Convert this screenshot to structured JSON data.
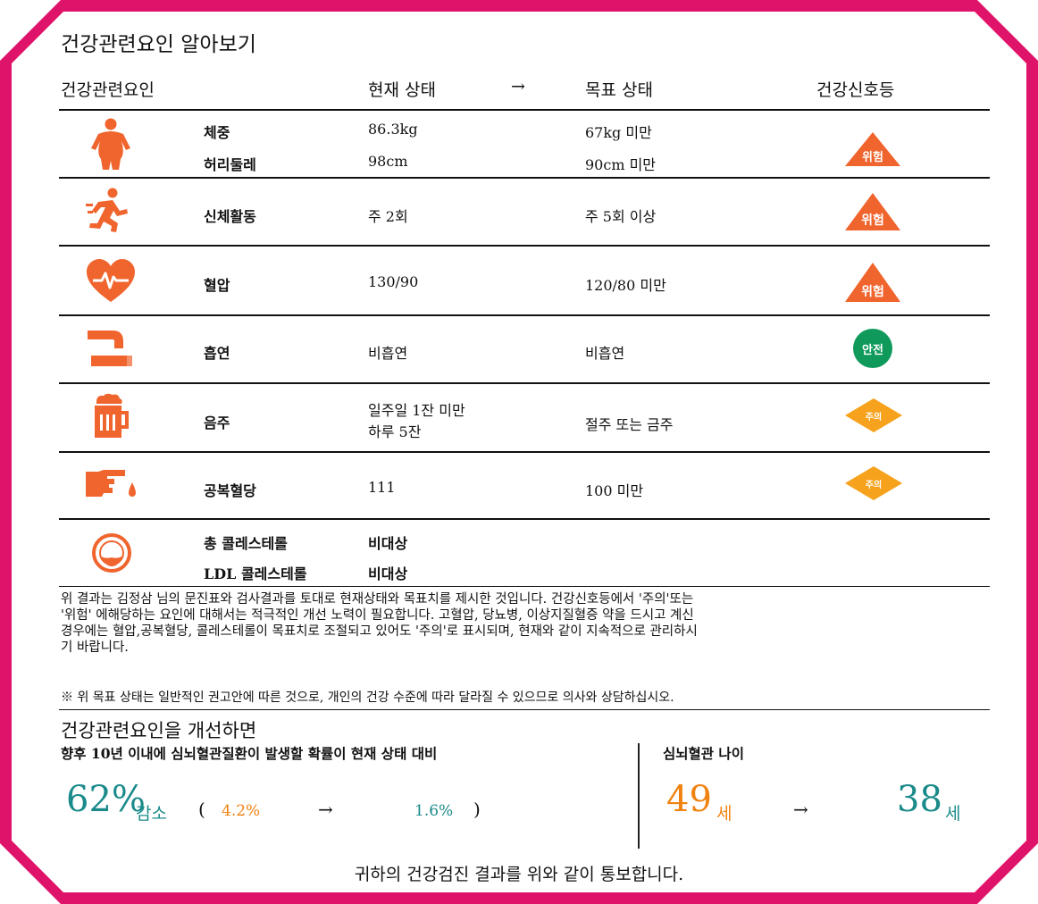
{
  "title": "건강관련요인 알아보기",
  "headers": {
    "factor": "건강관련요인",
    "current": "현재 상태",
    "arrow": "→",
    "target": "목표 상태",
    "signal": "건강신호등"
  },
  "rows": [
    {
      "icon": "body-weight-icon",
      "labels": [
        "체중",
        "허리둘레"
      ],
      "current": [
        "86.3kg",
        "98cm"
      ],
      "target": [
        "67kg 미만",
        "90cm 미만"
      ],
      "signal": {
        "type": "danger",
        "text": "위험",
        "color": "#f0642d"
      }
    },
    {
      "icon": "running-person-icon",
      "labels": [
        "신체활동"
      ],
      "current": [
        "주 2회"
      ],
      "target": [
        "주 5회 이상"
      ],
      "signal": {
        "type": "danger",
        "text": "위험",
        "color": "#f0642d"
      }
    },
    {
      "icon": "heart-pulse-icon",
      "labels": [
        "혈압"
      ],
      "current": [
        "130/90"
      ],
      "target": [
        "120/80 미만"
      ],
      "signal": {
        "type": "danger",
        "text": "위험",
        "color": "#f0642d"
      }
    },
    {
      "icon": "pipe-smoking-icon",
      "labels": [
        "흡연"
      ],
      "current": [
        "비흡연"
      ],
      "target": [
        "비흡연"
      ],
      "signal": {
        "type": "safe",
        "text": "안전",
        "color": "#0f9a5c"
      }
    },
    {
      "icon": "beer-mug-icon",
      "labels": [
        "음주"
      ],
      "current": [
        "일주일 1잔 미만",
        "하루 5잔"
      ],
      "target": [
        "절주 또는 금주"
      ],
      "signal": {
        "type": "caution",
        "text": "주의",
        "color": "#f6a21c"
      }
    },
    {
      "icon": "finger-blood-drop-icon",
      "labels": [
        "공복혈당"
      ],
      "current": [
        "111"
      ],
      "target": [
        "100 미만"
      ],
      "signal": {
        "type": "caution",
        "text": "주의",
        "color": "#f6a21c"
      }
    },
    {
      "icon": "artery-cholesterol-icon",
      "labels": [
        "총 콜레스테롤",
        "LDL 콜레스테롤"
      ],
      "current": [
        "비대상",
        "비대상"
      ],
      "target": [],
      "signal": null
    }
  ],
  "note1": [
    "위 결과는 김정삼  님의 문진표와 검사결과를 토대로 현재상태와 목표치를 제시한 것입니다. 건강신호등에서 '주의'또는",
    "'위험' 에해당하는 요인에 대해서는 적극적인 개선 노력이 필요합니다. 고혈압, 당뇨병, 이상지질혈증 약을 드시고 계신",
    "경우에는 혈압,공복혈당, 콜레스테롤이 목표치로 조절되고 있어도 '주의'로 표시되며, 현재와 같이 지속적으로 관리하시",
    "기 바랍니다."
  ],
  "note2": "※ 위 목표 상태는 일반적인 권고안에 따른 것으로, 개인의 건강 수준에 따라 달라질 수 있으므로 의사와 상담하십시오.",
  "improve": {
    "title": "건강관련요인을 개선하면",
    "risk_label": "향후 10년 이내에 심뇌혈관질환이 발생할 확률이 현재 상태 대비",
    "reduction_value": "62%",
    "reduction_word": "감소",
    "paren_open": "(",
    "risk_current": "4.2%",
    "arrow": "→",
    "risk_target": "1.6%",
    "paren_close": ")",
    "age_label": "심뇌혈관 나이",
    "age_current": "49",
    "age_target": "38",
    "age_unit": "세",
    "colors": {
      "teal": "#1a8a8a",
      "orange": "#f0820f"
    }
  },
  "footer": "귀하의 건강검진 결과를 위와 같이 통보합니다."
}
